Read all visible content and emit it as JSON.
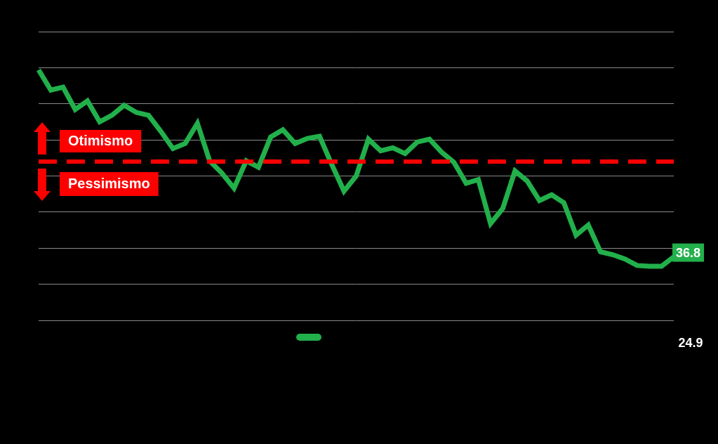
{
  "chart_data": {
    "type": "line",
    "categories": [
      null,
      null,
      null,
      null,
      null,
      null,
      null,
      null,
      null,
      null,
      null,
      null,
      null,
      null,
      null,
      null,
      null,
      null,
      null,
      null,
      null,
      null,
      null,
      null,
      null,
      null,
      null,
      null,
      null,
      null,
      null,
      null,
      null,
      null,
      null,
      null,
      null,
      null,
      null,
      null,
      null,
      null,
      null,
      null,
      null,
      null,
      null,
      null,
      null,
      null,
      null,
      null,
      null
    ],
    "series": [
      {
        "color": "#22b04b",
        "values": [
          62.7,
          59.9,
          60.3,
          57.2,
          58.4,
          55.5,
          56.4,
          57.8,
          56.8,
          56.4,
          54.2,
          51.8,
          52.5,
          55.3,
          50.1,
          48.4,
          46.3,
          50.1,
          49.2,
          53.4,
          54.4,
          52.5,
          53.2,
          53.5,
          49.6,
          45.9,
          48.0,
          53.1,
          51.5,
          51.9,
          51.1,
          52.7,
          53.1,
          51.3,
          49.9,
          47.0,
          47.5,
          41.4,
          43.5,
          48.7,
          47.3,
          44.6,
          45.4,
          44.3,
          39.8,
          41.2,
          37.5,
          37.1,
          36.5,
          35.6,
          35.5,
          35.5,
          36.8
        ],
        "value_labels": [
          null,
          null,
          null,
          null,
          null,
          null,
          null,
          null,
          null,
          null,
          null,
          null,
          null,
          null,
          null,
          null,
          null,
          null,
          null,
          null,
          null,
          null,
          null,
          null,
          null,
          null,
          null,
          null,
          null,
          null,
          null,
          null,
          null,
          null,
          null,
          null,
          null,
          null,
          null,
          null,
          null,
          null,
          null,
          null,
          null,
          null,
          null,
          null,
          null,
          null,
          null,
          null,
          "36.8"
        ]
      }
    ],
    "reference_line": {
      "value": 50,
      "color": "#ff0000",
      "line_style": "dashed",
      "label_above": "Otimismo",
      "label_below": "Pessimismo"
    },
    "annotations": [
      {
        "text": "24.9"
      }
    ],
    "ylim": [
      28,
      68
    ],
    "yticks": [
      28,
      33,
      38,
      43,
      48,
      53,
      58,
      63,
      68
    ],
    "grid": true,
    "tick_labels": false
  }
}
